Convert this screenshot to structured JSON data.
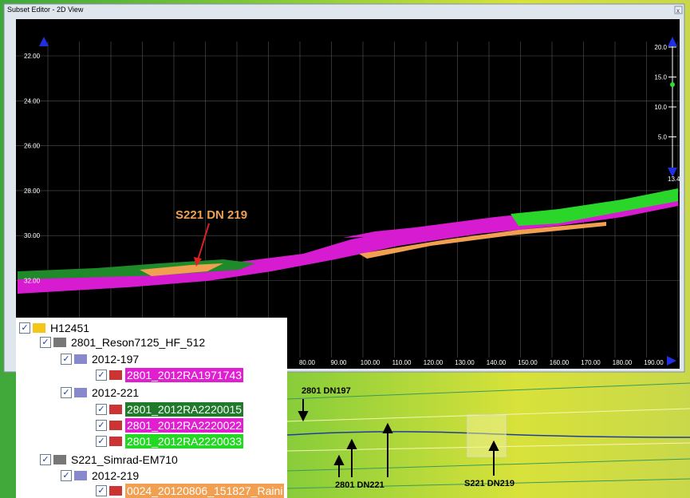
{
  "window": {
    "title": "Subset Editor - 2D View"
  },
  "plot": {
    "y_labels": [
      "22.00",
      "24.00",
      "26.00",
      "28.00",
      "30.00",
      "32.00"
    ],
    "x_labels": [
      "80.00",
      "90.00",
      "100.00",
      "110.00",
      "120.00",
      "130.00",
      "140.00",
      "150.00",
      "160.00",
      "170.00",
      "180.00",
      "190.00"
    ],
    "scale_labels": [
      "20.0",
      "15.0",
      "10.0",
      "5.0"
    ],
    "scale_value": "13.4",
    "annotation": "S221 DN 219"
  },
  "tree": {
    "nodes": [
      {
        "label": "H12451"
      },
      {
        "label": "2801_Reson7125_HF_512"
      },
      {
        "label": "2012-197"
      },
      {
        "label": "2801_2012RA1971743"
      },
      {
        "label": "2012-221"
      },
      {
        "label": "2801_2012RA2220015"
      },
      {
        "label": "2801_2012RA2220022"
      },
      {
        "label": "2801_2012RA2220033"
      },
      {
        "label": "S221_Simrad-EM710"
      },
      {
        "label": "2012-219"
      },
      {
        "label": "0024_20120806_151827_Raini"
      }
    ]
  },
  "map": {
    "annotations": [
      "2801 DN197",
      "2801 DN221",
      "S221 DN219"
    ]
  }
}
